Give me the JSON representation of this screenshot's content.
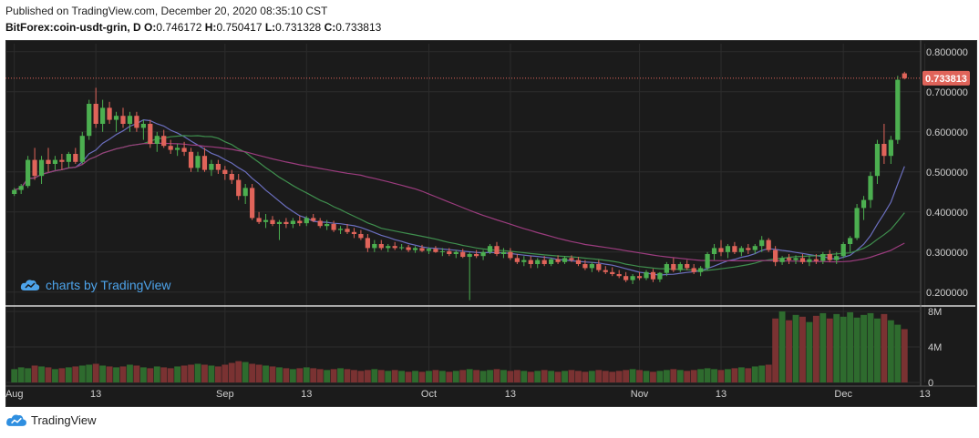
{
  "header": {
    "published": "Published on TradingView.com, December 20, 2020 08:35:10 CST",
    "symbol": "BitForex:coin-usdt-grin, D",
    "o_label": "O:",
    "o_val": "0.746172",
    "h_label": "H:",
    "h_val": "0.750417",
    "l_label": "L:",
    "l_val": "0.731328",
    "c_label": "C:",
    "c_val": "0.733813"
  },
  "watermark": "charts by TradingView",
  "footer": "TradingView",
  "colors": {
    "bg": "#1b1b1b",
    "grid": "#2c2c2c",
    "up": "#4caf50",
    "down": "#e0645a",
    "ma1": "#6b6fbf",
    "ma2": "#3f8f4e",
    "ma3": "#9b3c7e",
    "vol_up": "#2e6b2e",
    "vol_down": "#7a3232",
    "axis_text": "#cfcfcf",
    "last_price": "#e0645a"
  },
  "chart_data": {
    "type": "candlestick",
    "price_ticks": [
      "0.800000",
      "0.700000",
      "0.600000",
      "0.500000",
      "0.400000",
      "0.300000",
      "0.200000"
    ],
    "price_tick_values": [
      0.8,
      0.7,
      0.6,
      0.5,
      0.4,
      0.3,
      0.2
    ],
    "last_price": "0.733813",
    "volume_ticks": [
      "8M",
      "4M",
      "0"
    ],
    "volume_tick_values": [
      8000000,
      4000000,
      0
    ],
    "x_ticks": [
      "Aug",
      "13",
      "Sep",
      "13",
      "Oct",
      "13",
      "Nov",
      "13",
      "Dec",
      "13"
    ],
    "x_tick_index": [
      0,
      12,
      31,
      43,
      61,
      73,
      92,
      104,
      122,
      134
    ],
    "ylim": [
      0.17,
      0.82
    ],
    "vol_max": 8200000,
    "candles": [
      [
        0.445,
        0.46,
        0.44,
        0.455
      ],
      [
        0.455,
        0.47,
        0.445,
        0.465
      ],
      [
        0.465,
        0.54,
        0.46,
        0.53
      ],
      [
        0.53,
        0.56,
        0.48,
        0.49
      ],
      [
        0.49,
        0.54,
        0.47,
        0.53
      ],
      [
        0.53,
        0.56,
        0.5,
        0.52
      ],
      [
        0.52,
        0.54,
        0.505,
        0.53
      ],
      [
        0.53,
        0.545,
        0.505,
        0.525
      ],
      [
        0.525,
        0.55,
        0.51,
        0.545
      ],
      [
        0.545,
        0.56,
        0.52,
        0.525
      ],
      [
        0.525,
        0.6,
        0.52,
        0.59
      ],
      [
        0.59,
        0.68,
        0.58,
        0.67
      ],
      [
        0.67,
        0.71,
        0.61,
        0.62
      ],
      [
        0.62,
        0.68,
        0.6,
        0.66
      ],
      [
        0.66,
        0.675,
        0.62,
        0.63
      ],
      [
        0.63,
        0.65,
        0.6,
        0.64
      ],
      [
        0.64,
        0.66,
        0.61,
        0.62
      ],
      [
        0.62,
        0.65,
        0.6,
        0.64
      ],
      [
        0.64,
        0.65,
        0.6,
        0.61
      ],
      [
        0.61,
        0.63,
        0.58,
        0.62
      ],
      [
        0.62,
        0.63,
        0.56,
        0.57
      ],
      [
        0.57,
        0.6,
        0.55,
        0.59
      ],
      [
        0.59,
        0.605,
        0.56,
        0.565
      ],
      [
        0.565,
        0.58,
        0.545,
        0.555
      ],
      [
        0.555,
        0.57,
        0.54,
        0.56
      ],
      [
        0.56,
        0.575,
        0.54,
        0.55
      ],
      [
        0.55,
        0.56,
        0.5,
        0.51
      ],
      [
        0.51,
        0.55,
        0.5,
        0.54
      ],
      [
        0.54,
        0.56,
        0.5,
        0.505
      ],
      [
        0.505,
        0.53,
        0.49,
        0.52
      ],
      [
        0.52,
        0.53,
        0.495,
        0.505
      ],
      [
        0.505,
        0.515,
        0.48,
        0.495
      ],
      [
        0.495,
        0.505,
        0.47,
        0.48
      ],
      [
        0.48,
        0.495,
        0.43,
        0.44
      ],
      [
        0.44,
        0.47,
        0.42,
        0.46
      ],
      [
        0.46,
        0.47,
        0.38,
        0.385
      ],
      [
        0.385,
        0.4,
        0.37,
        0.375
      ],
      [
        0.375,
        0.395,
        0.36,
        0.38
      ],
      [
        0.38,
        0.39,
        0.365,
        0.37
      ],
      [
        0.37,
        0.38,
        0.33,
        0.375
      ],
      [
        0.375,
        0.385,
        0.36,
        0.37
      ],
      [
        0.37,
        0.385,
        0.36,
        0.378
      ],
      [
        0.378,
        0.39,
        0.365,
        0.372
      ],
      [
        0.372,
        0.39,
        0.365,
        0.385
      ],
      [
        0.385,
        0.395,
        0.375,
        0.378
      ],
      [
        0.378,
        0.385,
        0.36,
        0.365
      ],
      [
        0.365,
        0.38,
        0.355,
        0.37
      ],
      [
        0.37,
        0.378,
        0.35,
        0.355
      ],
      [
        0.355,
        0.365,
        0.345,
        0.358
      ],
      [
        0.358,
        0.37,
        0.345,
        0.35
      ],
      [
        0.35,
        0.36,
        0.335,
        0.345
      ],
      [
        0.345,
        0.355,
        0.33,
        0.335
      ],
      [
        0.335,
        0.345,
        0.3,
        0.31
      ],
      [
        0.31,
        0.33,
        0.3,
        0.32
      ],
      [
        0.32,
        0.33,
        0.305,
        0.31
      ],
      [
        0.31,
        0.32,
        0.3,
        0.315
      ],
      [
        0.315,
        0.325,
        0.305,
        0.31
      ],
      [
        0.31,
        0.32,
        0.305,
        0.312
      ],
      [
        0.312,
        0.318,
        0.3,
        0.305
      ],
      [
        0.305,
        0.315,
        0.298,
        0.31
      ],
      [
        0.31,
        0.318,
        0.3,
        0.303
      ],
      [
        0.303,
        0.312,
        0.295,
        0.308
      ],
      [
        0.308,
        0.315,
        0.298,
        0.3
      ],
      [
        0.3,
        0.31,
        0.29,
        0.302
      ],
      [
        0.302,
        0.31,
        0.29,
        0.295
      ],
      [
        0.295,
        0.305,
        0.285,
        0.3
      ],
      [
        0.3,
        0.308,
        0.285,
        0.288
      ],
      [
        0.288,
        0.3,
        0.18,
        0.295
      ],
      [
        0.295,
        0.305,
        0.285,
        0.29
      ],
      [
        0.29,
        0.305,
        0.28,
        0.3
      ],
      [
        0.3,
        0.32,
        0.295,
        0.315
      ],
      [
        0.315,
        0.325,
        0.29,
        0.295
      ],
      [
        0.295,
        0.31,
        0.285,
        0.3
      ],
      [
        0.3,
        0.31,
        0.28,
        0.285
      ],
      [
        0.285,
        0.295,
        0.27,
        0.275
      ],
      [
        0.275,
        0.29,
        0.265,
        0.28
      ],
      [
        0.28,
        0.29,
        0.26,
        0.27
      ],
      [
        0.27,
        0.285,
        0.26,
        0.28
      ],
      [
        0.28,
        0.29,
        0.265,
        0.27
      ],
      [
        0.27,
        0.285,
        0.265,
        0.282
      ],
      [
        0.282,
        0.292,
        0.27,
        0.275
      ],
      [
        0.275,
        0.29,
        0.27,
        0.285
      ],
      [
        0.285,
        0.292,
        0.275,
        0.28
      ],
      [
        0.28,
        0.288,
        0.265,
        0.27
      ],
      [
        0.27,
        0.28,
        0.255,
        0.26
      ],
      [
        0.26,
        0.275,
        0.25,
        0.27
      ],
      [
        0.27,
        0.28,
        0.25,
        0.255
      ],
      [
        0.255,
        0.265,
        0.245,
        0.25
      ],
      [
        0.25,
        0.262,
        0.24,
        0.245
      ],
      [
        0.245,
        0.255,
        0.235,
        0.24
      ],
      [
        0.24,
        0.25,
        0.225,
        0.23
      ],
      [
        0.23,
        0.245,
        0.22,
        0.24
      ],
      [
        0.24,
        0.25,
        0.23,
        0.235
      ],
      [
        0.235,
        0.255,
        0.23,
        0.25
      ],
      [
        0.25,
        0.258,
        0.225,
        0.232
      ],
      [
        0.232,
        0.25,
        0.225,
        0.248
      ],
      [
        0.248,
        0.275,
        0.24,
        0.27
      ],
      [
        0.27,
        0.285,
        0.25,
        0.255
      ],
      [
        0.255,
        0.275,
        0.25,
        0.27
      ],
      [
        0.27,
        0.28,
        0.255,
        0.26
      ],
      [
        0.26,
        0.27,
        0.245,
        0.25
      ],
      [
        0.25,
        0.265,
        0.24,
        0.26
      ],
      [
        0.26,
        0.3,
        0.255,
        0.295
      ],
      [
        0.295,
        0.32,
        0.28,
        0.31
      ],
      [
        0.31,
        0.33,
        0.29,
        0.3
      ],
      [
        0.3,
        0.32,
        0.285,
        0.315
      ],
      [
        0.315,
        0.325,
        0.295,
        0.3
      ],
      [
        0.3,
        0.315,
        0.29,
        0.31
      ],
      [
        0.31,
        0.32,
        0.295,
        0.305
      ],
      [
        0.305,
        0.32,
        0.295,
        0.315
      ],
      [
        0.315,
        0.34,
        0.3,
        0.33
      ],
      [
        0.33,
        0.335,
        0.3,
        0.305
      ],
      [
        0.305,
        0.315,
        0.265,
        0.275
      ],
      [
        0.275,
        0.29,
        0.268,
        0.285
      ],
      [
        0.285,
        0.295,
        0.27,
        0.28
      ],
      [
        0.28,
        0.292,
        0.27,
        0.285
      ],
      [
        0.285,
        0.295,
        0.27,
        0.275
      ],
      [
        0.275,
        0.29,
        0.265,
        0.282
      ],
      [
        0.282,
        0.295,
        0.27,
        0.278
      ],
      [
        0.278,
        0.3,
        0.27,
        0.295
      ],
      [
        0.295,
        0.305,
        0.275,
        0.28
      ],
      [
        0.28,
        0.3,
        0.27,
        0.29
      ],
      [
        0.29,
        0.325,
        0.285,
        0.32
      ],
      [
        0.32,
        0.34,
        0.3,
        0.335
      ],
      [
        0.335,
        0.42,
        0.33,
        0.41
      ],
      [
        0.41,
        0.44,
        0.38,
        0.43
      ],
      [
        0.43,
        0.5,
        0.41,
        0.49
      ],
      [
        0.49,
        0.58,
        0.47,
        0.57
      ],
      [
        0.57,
        0.62,
        0.52,
        0.54
      ],
      [
        0.54,
        0.59,
        0.52,
        0.58
      ],
      [
        0.58,
        0.74,
        0.57,
        0.73
      ],
      [
        0.746,
        0.75,
        0.731,
        0.734
      ]
    ],
    "volumes": [
      1500000,
      1700000,
      1600000,
      1900000,
      1800000,
      1700000,
      1500000,
      1600000,
      1700000,
      1800000,
      1900000,
      2000000,
      2100000,
      1900000,
      1800000,
      1700000,
      1800000,
      2000000,
      1900000,
      1700000,
      1600000,
      1800000,
      1700000,
      1600000,
      1800000,
      1900000,
      2000000,
      2100000,
      2000000,
      1900000,
      1800000,
      2000000,
      2200000,
      2400000,
      2300000,
      2100000,
      2000000,
      1900000,
      1800000,
      1700000,
      1600000,
      1500000,
      1600000,
      1700000,
      1600000,
      1500000,
      1400000,
      1500000,
      1600000,
      1500000,
      1400000,
      1300000,
      1400000,
      1500000,
      1400000,
      1300000,
      1400000,
      1300000,
      1200000,
      1300000,
      1200000,
      1300000,
      1400000,
      1300000,
      1200000,
      1300000,
      1400000,
      1500000,
      1400000,
      1300000,
      1400000,
      1500000,
      1400000,
      1300000,
      1400000,
      1300000,
      1200000,
      1300000,
      1400000,
      1300000,
      1200000,
      1300000,
      1400000,
      1300000,
      1200000,
      1300000,
      1400000,
      1300000,
      1200000,
      1300000,
      1400000,
      1500000,
      1400000,
      1300000,
      1200000,
      1300000,
      1400000,
      1500000,
      1400000,
      1300000,
      1400000,
      1500000,
      1600000,
      1500000,
      1400000,
      1500000,
      1600000,
      1700000,
      1600000,
      1800000,
      1900000,
      2000000,
      7200000,
      8000000,
      7000000,
      7600000,
      7400000,
      6800000,
      7500000,
      7800000,
      7200000,
      7700000,
      7400000,
      7900000,
      7300000,
      7600000,
      7800000,
      7200000,
      7700000,
      7000000,
      6500000,
      6000000
    ]
  }
}
